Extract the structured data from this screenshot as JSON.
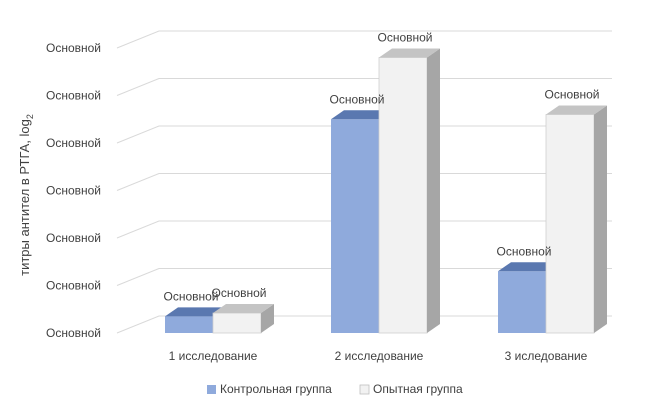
{
  "chart_data": {
    "type": "bar",
    "style": "3d-clustered-column",
    "ylabel": "титры антител в РТГА, log",
    "ylabel_sub": "2",
    "y_tick_labels": [
      "Основной",
      "Основной",
      "Основной",
      "Основной",
      "Основной",
      "Основной",
      "Основной"
    ],
    "ylim": [
      0,
      6
    ],
    "grid": true,
    "legend_position": "bottom",
    "categories": [
      "1 исследование",
      "2 исследование",
      "3 иследование"
    ],
    "series": [
      {
        "name": "Контрольная группа",
        "color": "#8faadc",
        "top_color": "#5a78b0",
        "values": [
          0.35,
          4.5,
          1.3
        ],
        "data_labels": [
          "Основной",
          "Основной",
          "Основной"
        ]
      },
      {
        "name": "Опытная группа",
        "color": "#f2f2f2",
        "top_color": "#c4c4c4",
        "values": [
          0.42,
          5.8,
          4.6
        ],
        "data_labels": [
          "Основной",
          "Основной",
          "Основной"
        ]
      }
    ]
  }
}
